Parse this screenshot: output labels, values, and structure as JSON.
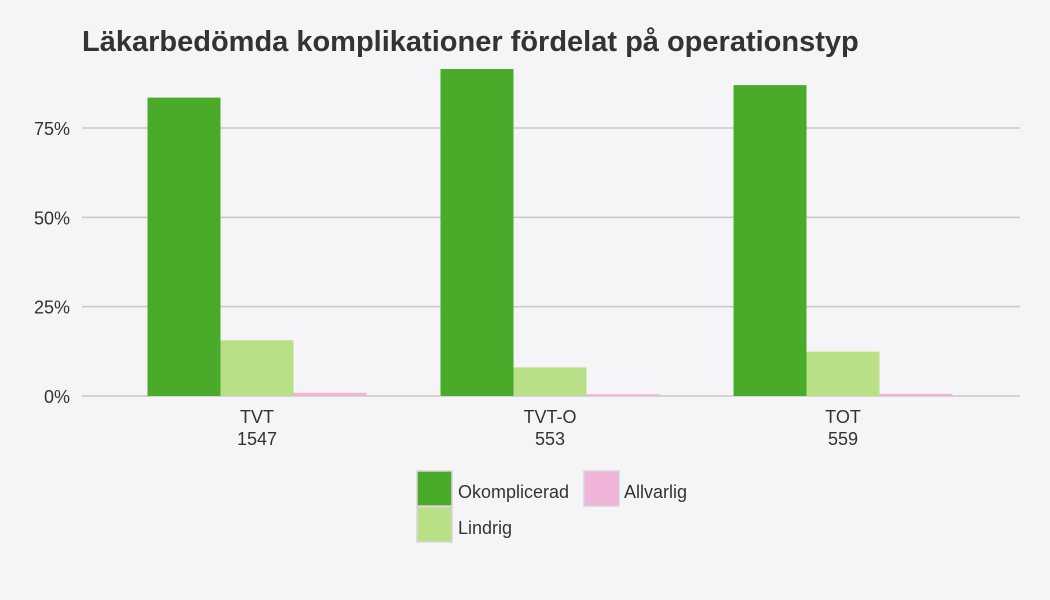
{
  "chart_data": {
    "type": "bar",
    "title": "Läkarbedömda komplikationer fördelat på operationstyp",
    "categories": [
      "TVT",
      "TVT-O",
      "TOT"
    ],
    "category_counts": [
      "1547",
      "553",
      "559"
    ],
    "series": [
      {
        "name": "Okomplicerad",
        "color": "#4aab2a",
        "values": [
          83.5,
          91.5,
          87.0
        ]
      },
      {
        "name": "Lindrig",
        "color": "#b9e086",
        "values": [
          15.6,
          8.0,
          12.4
        ]
      },
      {
        "name": "Allvarlig",
        "color": "#f0b4d8",
        "values": [
          0.9,
          0.5,
          0.6
        ]
      }
    ],
    "y_ticks": [
      0,
      25,
      50,
      75
    ],
    "y_tick_labels": [
      "0%",
      "25%",
      "50%",
      "75%"
    ],
    "ylim": [
      0,
      92
    ],
    "xlabel": "",
    "ylabel": "",
    "grid": true,
    "legend_position": "bottom"
  }
}
